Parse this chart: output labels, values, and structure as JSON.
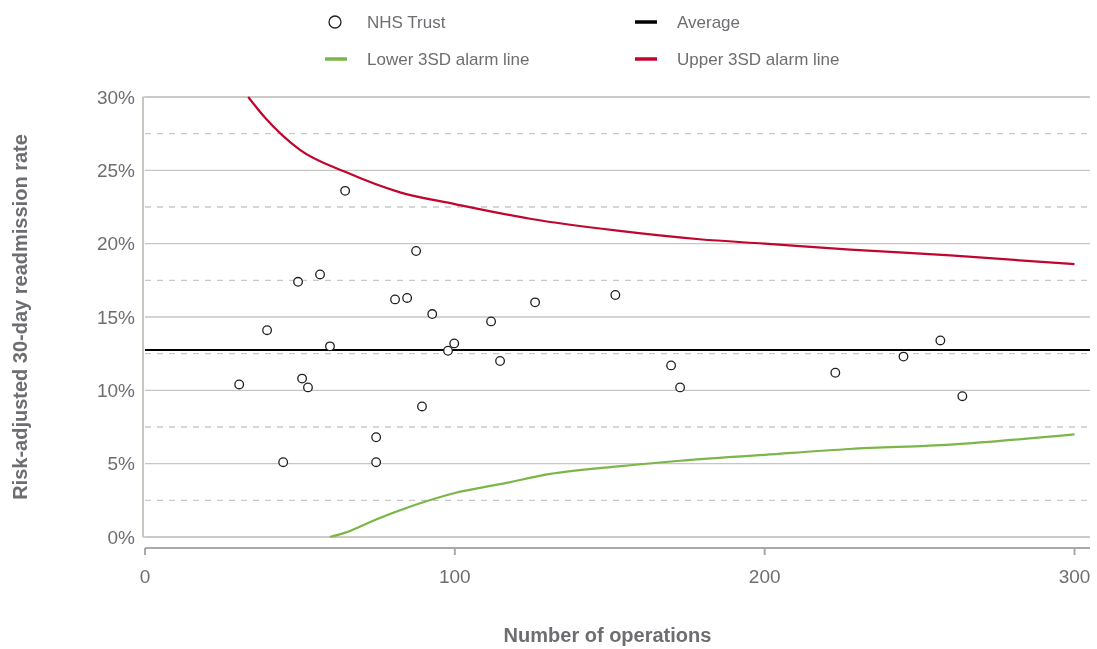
{
  "chart_data": {
    "type": "scatter",
    "xlabel": "Number of operations",
    "ylabel": "Risk-adjusted 30-day readmission rate",
    "xlim": [
      0,
      305
    ],
    "xticks": [
      0,
      100,
      200,
      300
    ],
    "ylim": [
      0,
      30
    ],
    "yticks": [
      {
        "value": 0,
        "label": "0%"
      },
      {
        "value": 2.5,
        "label": null
      },
      {
        "value": 5,
        "label": "5%"
      },
      {
        "value": 7.5,
        "label": null
      },
      {
        "value": 10,
        "label": "10%"
      },
      {
        "value": 12.5,
        "label": null
      },
      {
        "value": 15,
        "label": "15%"
      },
      {
        "value": 17.5,
        "label": null
      },
      {
        "value": 20,
        "label": "20%"
      },
      {
        "value": 22.5,
        "label": null
      },
      {
        "value": 25,
        "label": "25%"
      },
      {
        "value": 27.5,
        "label": null
      },
      {
        "value": 30,
        "label": "30%"
      }
    ],
    "grid": "y",
    "legend": "top",
    "marker": "circle",
    "series": [
      {
        "name": "NHS Trust",
        "color": "#231f20",
        "x": [
          30.4,
          39.4,
          44.6,
          49.4,
          50.7,
          52.6,
          56.5,
          59.7,
          64.6,
          74.6,
          74.6,
          80.7,
          84.6,
          87.5,
          89.4,
          92.7,
          97.8,
          99.8,
          111.7,
          114.6,
          125.9,
          151.8,
          169.8,
          172.7,
          222.8,
          244.8,
          256.7,
          263.8
        ],
        "values": [
          10.4,
          14.1,
          5.1,
          17.4,
          10.8,
          10.2,
          17.9,
          13.0,
          23.6,
          6.8,
          5.1,
          16.2,
          16.3,
          19.5,
          8.9,
          15.2,
          12.7,
          13.2,
          14.7,
          12.0,
          16.0,
          16.5,
          11.7,
          10.2,
          11.2,
          12.3,
          13.4,
          9.6
        ]
      },
      {
        "name": "Average",
        "type": "line",
        "color": "#000000",
        "marker": "none",
        "x": [
          0,
          305
        ],
        "values": [
          12.75,
          12.75
        ]
      },
      {
        "name": "Lower 3SD alarm line",
        "type": "line",
        "color": "#7ab648",
        "marker": "none",
        "x": [
          59.7,
          64.6,
          74.6,
          88.8,
          100,
          114.6,
          130.8,
          151.8,
          172.7,
          200,
          227.6,
          260,
          300
        ],
        "values": [
          0,
          0.3,
          1.2,
          2.3,
          3.0,
          3.6,
          4.3,
          4.8,
          5.2,
          5.6,
          6.0,
          6.3,
          7.0
        ]
      },
      {
        "name": "Upper 3SD alarm line",
        "type": "line",
        "color": "#c0062f",
        "marker": "none",
        "x": [
          33.3,
          38.7,
          50,
          64.6,
          82.3,
          100,
          124.3,
          151.8,
          179,
          200,
          227.6,
          260,
          300
        ],
        "values": [
          30,
          28.6,
          26.4,
          24.9,
          23.5,
          22.7,
          21.7,
          20.9,
          20.3,
          20.0,
          19.6,
          19.2,
          18.6
        ]
      }
    ]
  }
}
